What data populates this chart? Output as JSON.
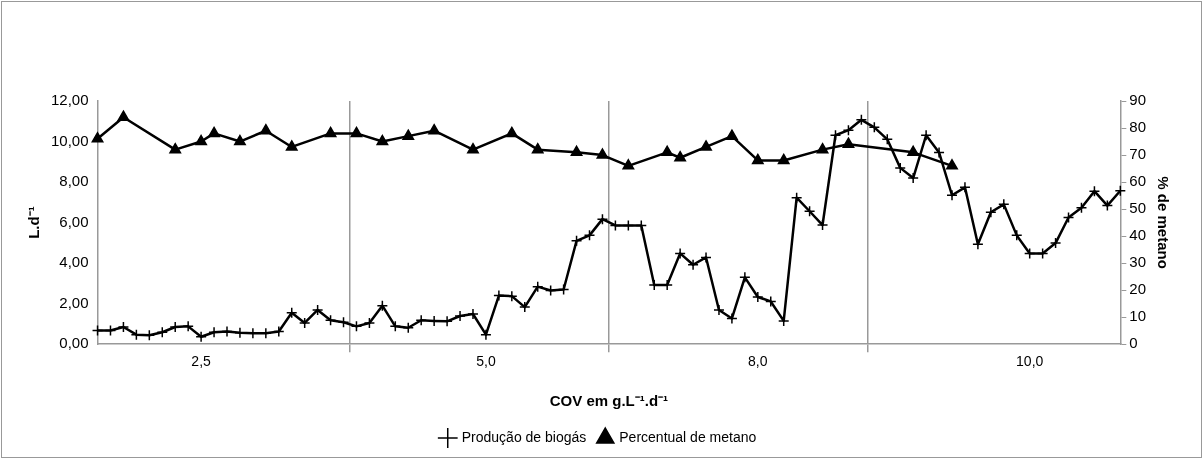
{
  "chart_data": {
    "type": "line",
    "xlabel": "COV em g.L⁻¹.d⁻¹",
    "ylabel": "L.d⁻¹",
    "y2label": "% de metano",
    "categories": [
      null,
      null,
      null,
      null,
      null,
      null,
      null,
      null,
      "2,5",
      null,
      null,
      null,
      null,
      null,
      null,
      null,
      null,
      null,
      null,
      null,
      null,
      null,
      null,
      null,
      null,
      null,
      null,
      null,
      null,
      null,
      "5,0",
      null,
      null,
      null,
      null,
      null,
      null,
      null,
      null,
      null,
      null,
      null,
      null,
      null,
      null,
      null,
      null,
      null,
      null,
      null,
      null,
      "8,0",
      null,
      null,
      null,
      null,
      null,
      null,
      null,
      null,
      null,
      null,
      null,
      null,
      null,
      null,
      null,
      null,
      null,
      null,
      null,
      null,
      "10,0",
      null,
      null,
      null,
      null,
      null,
      null,
      null
    ],
    "series": [
      {
        "name": "Produção de biogás",
        "color": "#000000",
        "marker": "cross",
        "values": [
          0.68,
          0.68,
          0.85,
          0.47,
          0.44,
          0.59,
          0.85,
          0.88,
          0.37,
          0.59,
          0.63,
          0.56,
          0.54,
          0.54,
          0.63,
          1.55,
          1.05,
          1.69,
          1.18,
          1.08,
          0.88,
          1.05,
          1.9,
          0.88,
          0.81,
          1.18,
          1.15,
          1.13,
          1.39,
          1.49,
          0.47,
          2.4,
          2.37,
          1.83,
          2.84,
          2.65,
          2.7,
          5.1,
          5.37,
          6.17,
          5.86,
          5.86,
          5.86,
          2.92,
          2.92,
          4.48,
          3.92,
          4.28,
          1.69,
          1.27,
          3.3,
          2.33,
          2.11,
          1.15,
          7.23,
          6.56,
          5.88,
          10.31,
          10.56,
          11.07,
          10.7,
          10.11,
          8.7,
          8.2,
          10.31,
          9.46,
          7.35,
          7.74,
          4.93,
          6.51,
          6.9,
          5.37,
          4.48,
          4.48,
          4.99,
          6.25,
          6.73,
          7.55,
          6.84,
          7.57
        ]
      },
      {
        "name": "Percentual de metano",
        "color": "#000000",
        "marker": "triangle",
        "axis": "y2",
        "values": [
          76,
          null,
          84,
          null,
          null,
          null,
          72,
          null,
          75,
          78,
          null,
          75,
          null,
          79,
          null,
          73,
          null,
          null,
          78,
          null,
          78,
          null,
          75,
          null,
          77,
          null,
          79,
          null,
          null,
          72,
          null,
          null,
          78,
          null,
          72,
          null,
          null,
          71,
          null,
          70,
          null,
          66,
          null,
          null,
          71,
          69,
          null,
          73,
          null,
          77,
          null,
          68,
          null,
          68,
          null,
          null,
          72,
          null,
          74,
          null,
          null,
          null,
          null,
          71,
          null,
          null,
          66,
          null,
          null,
          null,
          null,
          null,
          null,
          null,
          null,
          null,
          null,
          null,
          null,
          null
        ]
      }
    ],
    "ylim": [
      0,
      12
    ],
    "yticks": [
      {
        "value": 0,
        "label": "0,00"
      },
      {
        "value": 2,
        "label": "2,00"
      },
      {
        "value": 4,
        "label": "4,00"
      },
      {
        "value": 6,
        "label": "6,00"
      },
      {
        "value": 8,
        "label": "8,00"
      },
      {
        "value": 10,
        "label": "10,00"
      },
      {
        "value": 12,
        "label": "12,00"
      }
    ],
    "y2lim": [
      0,
      90
    ],
    "y2ticks": [
      0,
      10,
      20,
      30,
      40,
      50,
      60,
      70,
      80,
      90
    ],
    "grid": "x",
    "legend": "bottom",
    "line_style": "solid"
  }
}
